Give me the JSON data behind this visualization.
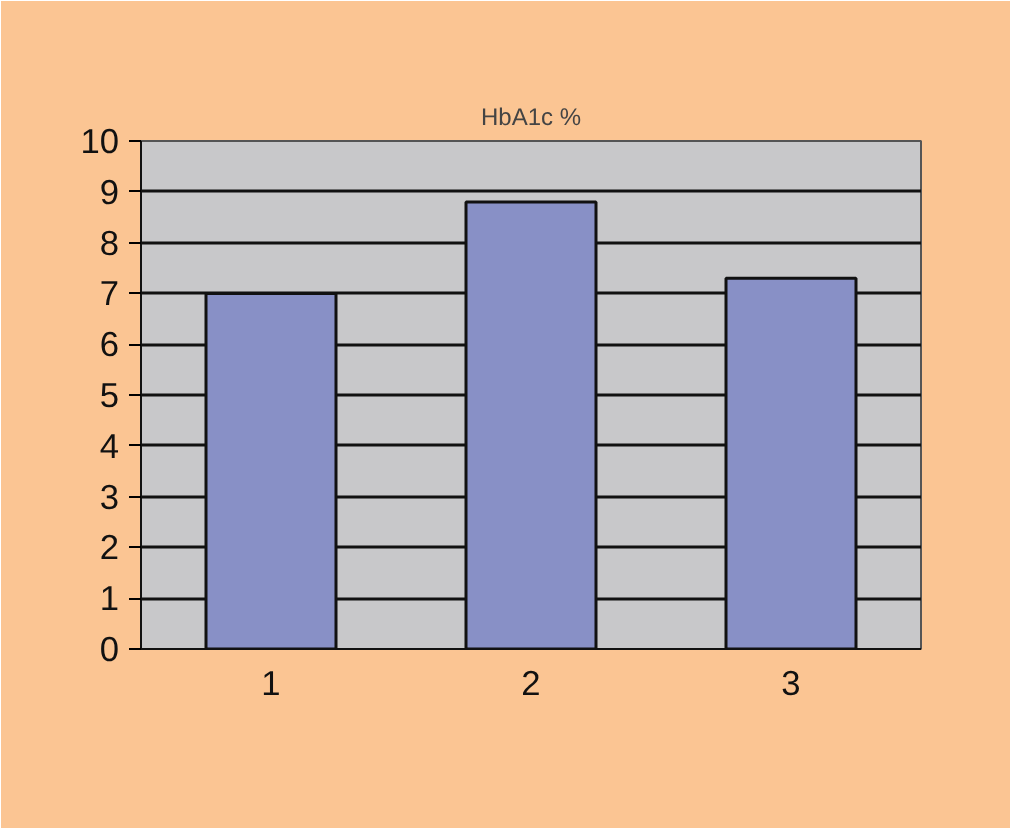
{
  "chart_data": {
    "type": "bar",
    "title": "HbA1c %",
    "categories": [
      "1",
      "2",
      "3"
    ],
    "values": [
      7.0,
      8.8,
      7.3
    ],
    "color": "#8890c6",
    "ylim": [
      0,
      10
    ],
    "yticks": [
      0,
      1,
      2,
      3,
      4,
      5,
      6,
      7,
      8,
      9,
      10
    ],
    "grid": "y"
  }
}
